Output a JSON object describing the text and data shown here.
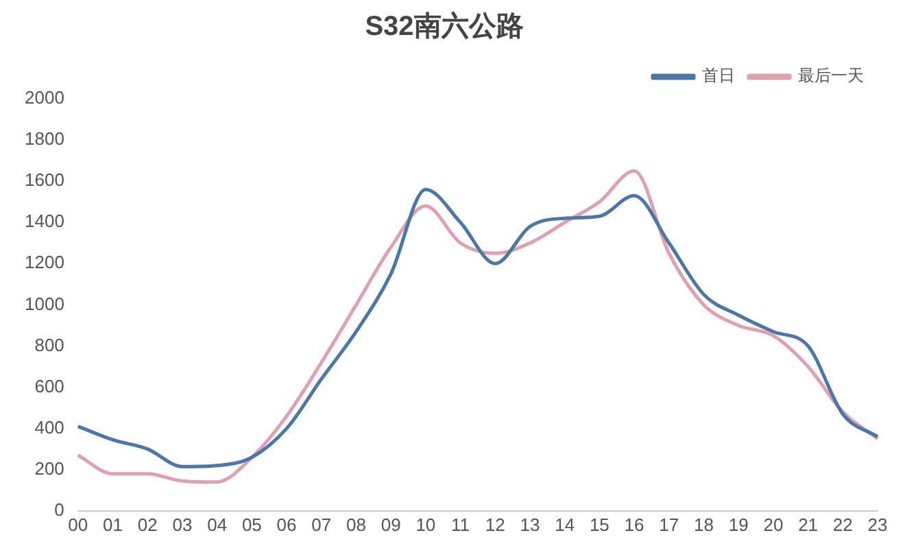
{
  "chart_data": {
    "type": "line",
    "title": "S32南六公路",
    "categories": [
      "00",
      "01",
      "02",
      "03",
      "04",
      "05",
      "06",
      "07",
      "08",
      "09",
      "10",
      "11",
      "12",
      "13",
      "14",
      "15",
      "16",
      "17",
      "18",
      "19",
      "20",
      "21",
      "22",
      "23"
    ],
    "series": [
      {
        "name": "首日",
        "color": "#4a76a8",
        "values": [
          410,
          345,
          300,
          215,
          220,
          260,
          400,
          640,
          870,
          1150,
          1560,
          1400,
          1200,
          1380,
          1420,
          1430,
          1530,
          1300,
          1050,
          950,
          870,
          800,
          470,
          360
        ]
      },
      {
        "name": "最后一天",
        "color": "#dfa0b2",
        "values": [
          270,
          180,
          180,
          145,
          140,
          260,
          460,
          720,
          1000,
          1280,
          1480,
          1300,
          1250,
          1300,
          1400,
          1500,
          1650,
          1250,
          1000,
          900,
          850,
          700,
          480,
          350
        ]
      }
    ],
    "ylim": [
      0,
      2000
    ],
    "yticks": [
      0,
      200,
      400,
      600,
      800,
      1000,
      1200,
      1400,
      1600,
      1800,
      2000
    ],
    "grid": false,
    "legend": "top right",
    "marker": "none",
    "line_style": "solid"
  }
}
